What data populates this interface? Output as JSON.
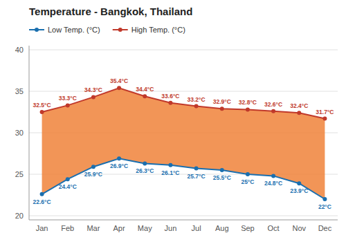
{
  "chart_data": {
    "type": "line",
    "title": "Temperature - Bangkok, Thailand",
    "categories": [
      "Jan",
      "Feb",
      "Mar",
      "Apr",
      "May",
      "Jun",
      "Jul",
      "Aug",
      "Sep",
      "Oct",
      "Nov",
      "Dec"
    ],
    "series": [
      {
        "name": "Low Temp. (°C)",
        "color": "#1a6faf",
        "marker": "circle",
        "values": [
          22.6,
          24.4,
          25.9,
          26.9,
          26.3,
          26.1,
          25.7,
          25.5,
          25.0,
          24.8,
          23.9,
          22.0
        ],
        "value_labels": [
          "22.6°C",
          "24.4°C",
          "25.9°C",
          "26.9°C",
          "26.3°C",
          "26.1°C",
          "25.7°C",
          "25.5°C",
          "25°C",
          "24.8°C",
          "23.9°C",
          "22°C"
        ]
      },
      {
        "name": "High Temp. (°C)",
        "color": "#c0392b",
        "marker": "circle",
        "values": [
          32.5,
          33.3,
          34.3,
          35.4,
          34.4,
          33.6,
          33.2,
          32.9,
          32.8,
          32.6,
          32.4,
          31.7
        ],
        "value_labels": [
          "32.5°C",
          "33.3°C",
          "34.3°C",
          "35.4°C",
          "34.4°C",
          "33.6°C",
          "33.2°C",
          "32.9°C",
          "32.8°C",
          "32.6°C",
          "32.4°C",
          "31.7°C"
        ]
      }
    ],
    "color": "#f0833a",
    "ylim": [
      19.5,
      40.5
    ],
    "yticks": [
      20,
      25,
      30,
      35,
      40
    ],
    "grid": true,
    "legend": "top-left",
    "data_labels": true
  }
}
